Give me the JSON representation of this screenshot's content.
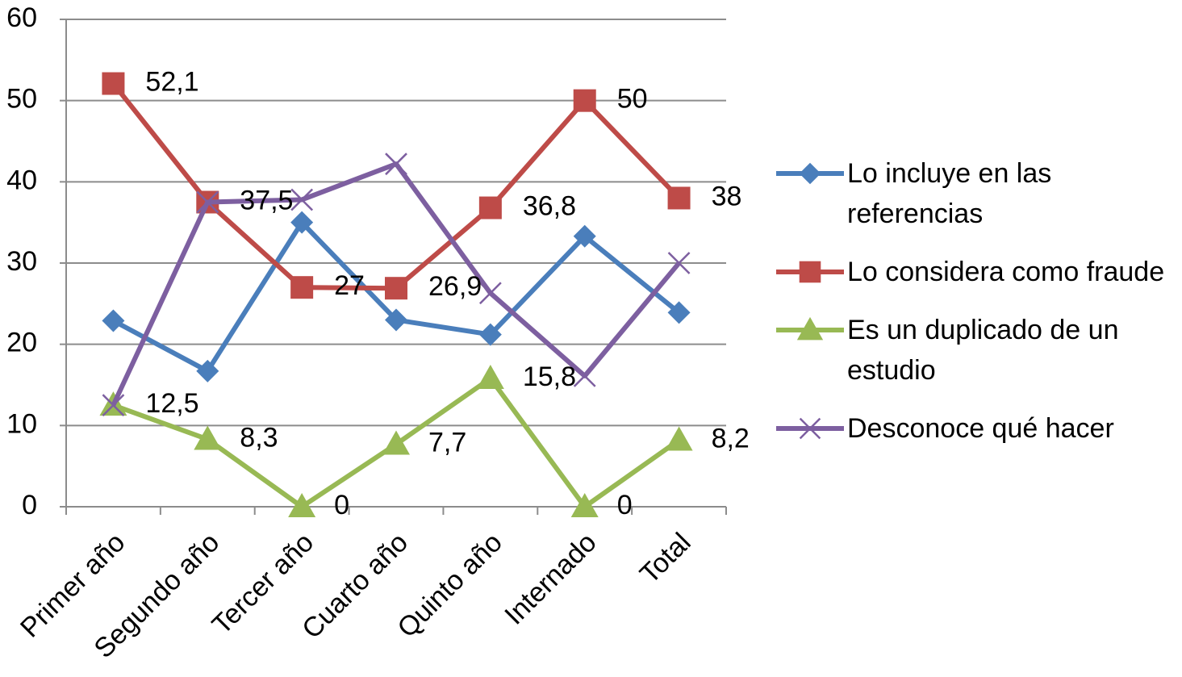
{
  "chart_data": {
    "type": "line",
    "categories": [
      "Primer año",
      "Segundo año",
      "Tercer año",
      "Cuarto año",
      "Quinto año",
      "Internado",
      "Total"
    ],
    "series": [
      {
        "name": "Lo incluye en las referencias",
        "color": "#4a7ebb",
        "marker": "diamond",
        "values": [
          22.9,
          16.7,
          35.0,
          23.0,
          21.2,
          33.3,
          23.9
        ]
      },
      {
        "name": "Lo considera como fraude",
        "color": "#be4b48",
        "marker": "square",
        "values": [
          52.1,
          37.5,
          27,
          26.9,
          36.8,
          50,
          38
        ],
        "value_labels": [
          "52,1",
          "37,5",
          "27",
          "26,9",
          "36,8",
          "50",
          "38"
        ]
      },
      {
        "name": "Es un duplicado de un estudio",
        "color": "#98b954",
        "marker": "triangle",
        "values": [
          12.5,
          8.3,
          0,
          7.7,
          15.8,
          0,
          8.2
        ],
        "value_labels": [
          "12,5",
          "8,3",
          "0",
          "7,7",
          "15,8",
          "0",
          "8,2"
        ]
      },
      {
        "name": "Desconoce qué hacer",
        "color": "#7d5fa0",
        "marker": "x",
        "values": [
          12.5,
          37.5,
          37.8,
          42.2,
          26.3,
          16.1,
          30.0
        ]
      }
    ],
    "ylim": [
      0,
      60
    ],
    "yticks": [
      0,
      10,
      20,
      30,
      40,
      50,
      60
    ],
    "grid": true,
    "legend": "right"
  }
}
